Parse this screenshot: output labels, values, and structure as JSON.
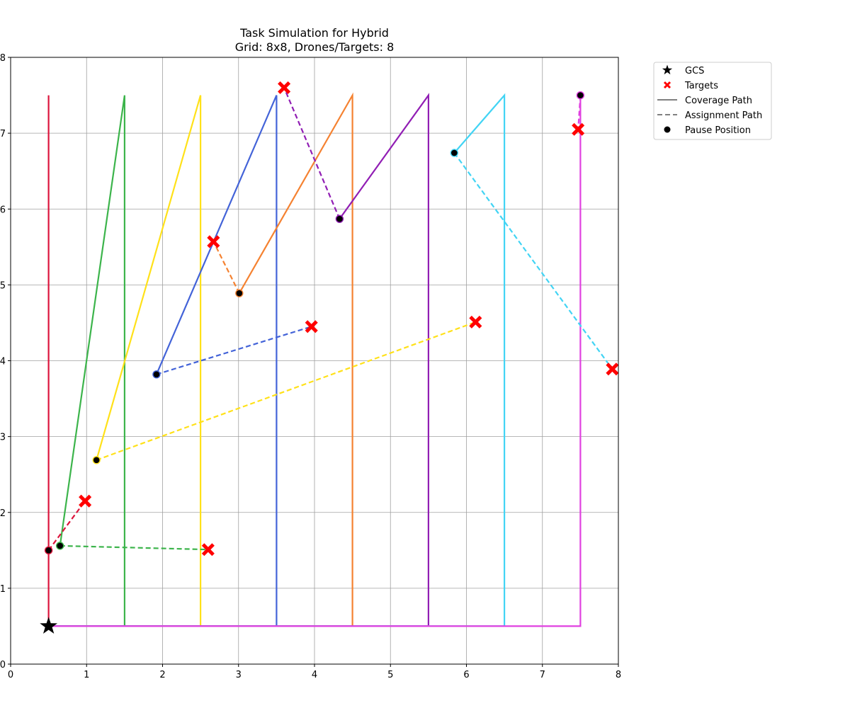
{
  "chart_data": {
    "type": "line",
    "title": "Task Simulation for Hybrid",
    "subtitle": "Grid: 8x8, Drones/Targets: 8",
    "xlabel": "",
    "ylabel": "",
    "xlim": [
      0,
      8
    ],
    "ylim": [
      0,
      8
    ],
    "x_ticks": [
      "0",
      "1",
      "2",
      "3",
      "4",
      "5",
      "6",
      "7",
      "8"
    ],
    "y_ticks": [
      "0",
      "1",
      "2",
      "3",
      "4",
      "5",
      "6",
      "7",
      "8"
    ],
    "grid": true,
    "legend_position": "outside-top-right",
    "legend": [
      {
        "label": "GCS",
        "marker": "star",
        "color": "#000000"
      },
      {
        "label": "Targets",
        "marker": "x",
        "color": "#ff0000"
      },
      {
        "label": "Coverage Path",
        "marker": "solid-line",
        "color": "#808080"
      },
      {
        "label": "Assignment Path",
        "marker": "dashed-line",
        "color": "#808080"
      },
      {
        "label": "Pause Position",
        "marker": "dot",
        "color": "#000000"
      }
    ],
    "gcs": {
      "x": 0.5,
      "y": 0.5
    },
    "targets": [
      {
        "x": 0.98,
        "y": 2.15
      },
      {
        "x": 2.6,
        "y": 1.51
      },
      {
        "x": 3.96,
        "y": 4.45
      },
      {
        "x": 2.67,
        "y": 5.57
      },
      {
        "x": 3.6,
        "y": 7.6
      },
      {
        "x": 6.12,
        "y": 4.51
      },
      {
        "x": 7.92,
        "y": 3.89
      },
      {
        "x": 7.47,
        "y": 7.05
      }
    ],
    "series": [
      {
        "color": "#dc143c",
        "coverage": [
          [
            0.5,
            0.5
          ],
          [
            0.5,
            7.5
          ],
          [
            0.5,
            1.5
          ]
        ],
        "pause": [
          0.5,
          1.5
        ],
        "assignment": [
          [
            0.5,
            1.5
          ],
          [
            0.98,
            2.15
          ]
        ]
      },
      {
        "color": "#3cb44b",
        "coverage": [
          [
            0.5,
            0.5
          ],
          [
            1.5,
            0.5
          ],
          [
            1.5,
            7.5
          ],
          [
            0.65,
            1.56
          ]
        ],
        "pause": [
          0.65,
          1.56
        ],
        "assignment": [
          [
            0.65,
            1.56
          ],
          [
            2.6,
            1.51
          ]
        ]
      },
      {
        "color": "#ffe119",
        "coverage": [
          [
            0.5,
            0.5
          ],
          [
            2.5,
            0.5
          ],
          [
            2.5,
            7.5
          ],
          [
            1.13,
            2.69
          ]
        ],
        "pause": [
          1.13,
          2.69
        ],
        "assignment": [
          [
            1.13,
            2.69
          ],
          [
            6.12,
            4.51
          ]
        ]
      },
      {
        "color": "#4363d8",
        "coverage": [
          [
            0.5,
            0.5
          ],
          [
            3.5,
            0.5
          ],
          [
            3.5,
            7.5
          ],
          [
            1.92,
            3.82
          ]
        ],
        "pause": [
          1.92,
          3.82
        ],
        "assignment": [
          [
            1.92,
            3.82
          ],
          [
            3.96,
            4.45
          ]
        ]
      },
      {
        "color": "#f58231",
        "coverage": [
          [
            0.5,
            0.5
          ],
          [
            4.5,
            0.5
          ],
          [
            4.5,
            7.5
          ],
          [
            3.01,
            4.89
          ]
        ],
        "pause": [
          3.01,
          4.89
        ],
        "assignment": [
          [
            3.01,
            4.89
          ],
          [
            2.67,
            5.57
          ]
        ]
      },
      {
        "color": "#911eb4",
        "coverage": [
          [
            0.5,
            0.5
          ],
          [
            5.5,
            0.5
          ],
          [
            5.5,
            7.5
          ],
          [
            4.33,
            5.87
          ]
        ],
        "pause": [
          4.33,
          5.87
        ],
        "assignment": [
          [
            4.33,
            5.87
          ],
          [
            3.6,
            7.6
          ]
        ]
      },
      {
        "color": "#42d4f4",
        "coverage": [
          [
            0.5,
            0.5
          ],
          [
            6.5,
            0.5
          ],
          [
            6.5,
            7.5
          ],
          [
            5.84,
            6.74
          ]
        ],
        "pause": [
          5.84,
          6.74
        ],
        "assignment": [
          [
            5.84,
            6.74
          ],
          [
            7.92,
            3.89
          ]
        ]
      },
      {
        "color": "#e040e0",
        "coverage": [
          [
            0.5,
            0.5
          ],
          [
            7.5,
            0.5
          ],
          [
            7.5,
            7.5
          ]
        ],
        "pause": [
          7.5,
          7.5
        ],
        "assignment": [
          [
            7.5,
            7.5
          ],
          [
            7.47,
            7.05
          ]
        ]
      }
    ]
  }
}
